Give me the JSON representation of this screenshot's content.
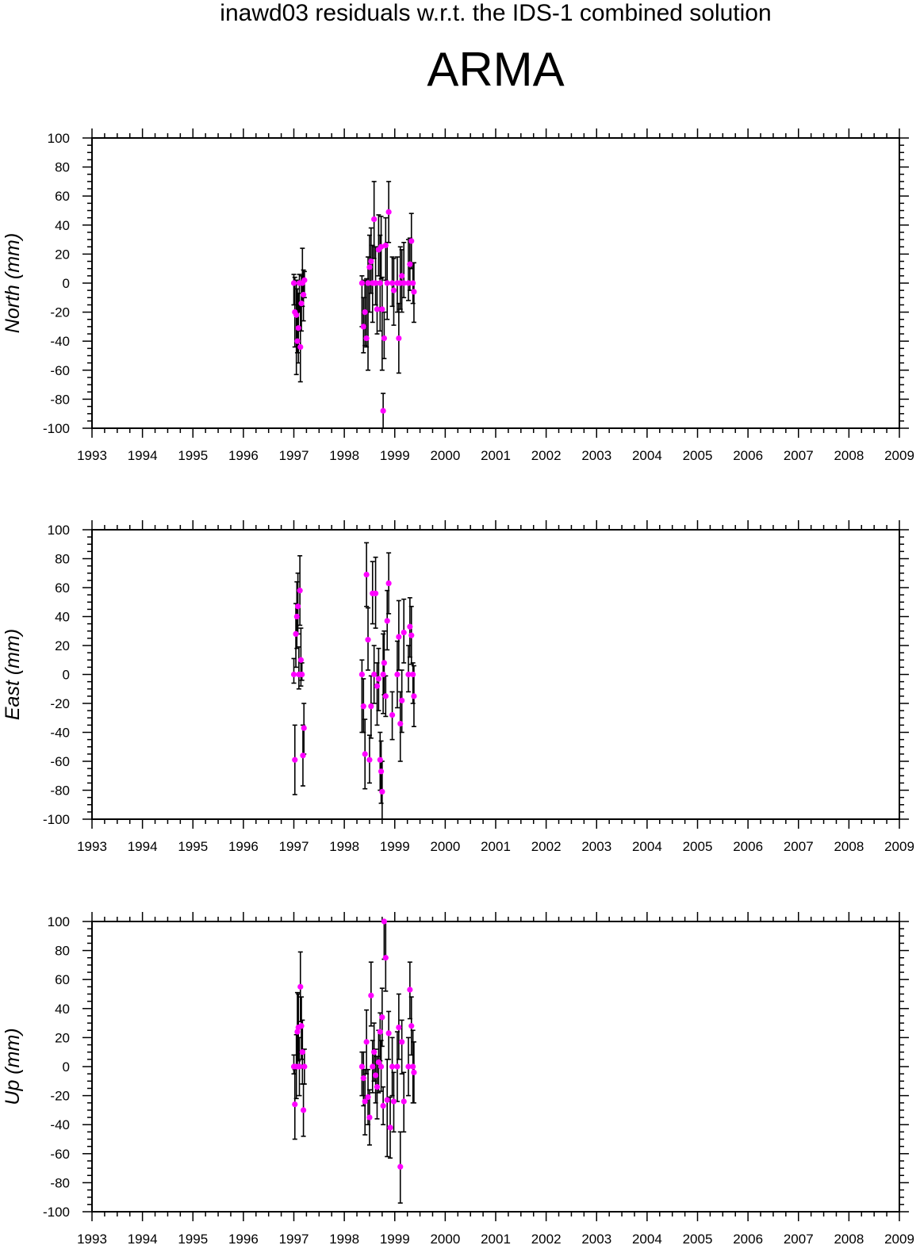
{
  "title": "inawd03 residuals w.r.t. the IDS-1 combined solution",
  "station": "ARMA",
  "colors": {
    "point": "#ff00ff",
    "errorbar": "#000000",
    "axis": "#000000"
  },
  "chart_data": [
    {
      "type": "scatter",
      "ylabel": "North (mm)",
      "xlim": [
        1993,
        2009
      ],
      "ylim": [
        -100,
        100
      ],
      "xticks": [
        "1993",
        "1994",
        "1995",
        "1996",
        "1997",
        "1998",
        "1999",
        "2000",
        "2001",
        "2002",
        "2003",
        "2004",
        "2005",
        "2006",
        "2007",
        "2008",
        "2009"
      ],
      "yticks": [
        "100",
        "80",
        "60",
        "40",
        "20",
        "0",
        "-20",
        "-40",
        "-60",
        "-80",
        "-100"
      ],
      "series": [
        {
          "points": [
            {
              "x": 1997.0,
              "y": 0,
              "lo": -15,
              "hi": 6
            },
            {
              "x": 1997.02,
              "y": -20,
              "lo": -44,
              "hi": 4
            },
            {
              "x": 1997.05,
              "y": -22,
              "lo": -63,
              "hi": 2
            },
            {
              "x": 1997.07,
              "y": -40,
              "lo": -48,
              "hi": -4
            },
            {
              "x": 1997.09,
              "y": -31,
              "lo": -55,
              "hi": -7
            },
            {
              "x": 1997.11,
              "y": 0,
              "lo": -20,
              "hi": 6
            },
            {
              "x": 1997.13,
              "y": -44,
              "lo": -68,
              "hi": -14
            },
            {
              "x": 1997.15,
              "y": -14,
              "lo": -33,
              "hi": 5
            },
            {
              "x": 1997.17,
              "y": 0,
              "lo": -16,
              "hi": 24
            },
            {
              "x": 1997.19,
              "y": -8,
              "lo": -26,
              "hi": 9
            },
            {
              "x": 1997.21,
              "y": 2,
              "lo": -10,
              "hi": 8
            },
            {
              "x": 1998.35,
              "y": 0,
              "lo": -30,
              "hi": 5
            },
            {
              "x": 1998.38,
              "y": -30,
              "lo": -48,
              "hi": -10
            },
            {
              "x": 1998.41,
              "y": -20,
              "lo": -43,
              "hi": 2
            },
            {
              "x": 1998.44,
              "y": -38,
              "lo": -44,
              "hi": 3
            },
            {
              "x": 1998.47,
              "y": 0,
              "lo": -60,
              "hi": 18
            },
            {
              "x": 1998.5,
              "y": 11,
              "lo": -20,
              "hi": 33
            },
            {
              "x": 1998.53,
              "y": 15,
              "lo": -7,
              "hi": 38
            },
            {
              "x": 1998.56,
              "y": 0,
              "lo": -27,
              "hi": 26
            },
            {
              "x": 1998.59,
              "y": 44,
              "lo": 17,
              "hi": 70
            },
            {
              "x": 1998.62,
              "y": 0,
              "lo": -15,
              "hi": 25
            },
            {
              "x": 1998.65,
              "y": -18,
              "lo": -35,
              "hi": 1
            },
            {
              "x": 1998.68,
              "y": 23,
              "lo": 5,
              "hi": 47
            },
            {
              "x": 1998.71,
              "y": 0,
              "lo": -33,
              "hi": 33
            },
            {
              "x": 1998.73,
              "y": 25,
              "lo": 3,
              "hi": 46
            },
            {
              "x": 1998.75,
              "y": -18,
              "lo": -60,
              "hi": 4
            },
            {
              "x": 1998.77,
              "y": -88,
              "lo": -100,
              "hi": -76
            },
            {
              "x": 1998.79,
              "y": -38,
              "lo": -52,
              "hi": -20
            },
            {
              "x": 1998.82,
              "y": 26,
              "lo": 2,
              "hi": 45
            },
            {
              "x": 1998.85,
              "y": 0,
              "lo": -25,
              "hi": 28
            },
            {
              "x": 1998.88,
              "y": 49,
              "lo": 28,
              "hi": 70
            },
            {
              "x": 1998.95,
              "y": 0,
              "lo": -16,
              "hi": 18
            },
            {
              "x": 1998.98,
              "y": -5,
              "lo": -29,
              "hi": 17
            },
            {
              "x": 1999.05,
              "y": 0,
              "lo": -20,
              "hi": 18
            },
            {
              "x": 1999.08,
              "y": -38,
              "lo": -62,
              "hi": -14
            },
            {
              "x": 1999.11,
              "y": 0,
              "lo": -18,
              "hi": 25
            },
            {
              "x": 1999.14,
              "y": 5,
              "lo": -20,
              "hi": 23
            },
            {
              "x": 1999.18,
              "y": 0,
              "lo": -10,
              "hi": 28
            },
            {
              "x": 1999.27,
              "y": 0,
              "lo": -12,
              "hi": 30
            },
            {
              "x": 1999.3,
              "y": 13,
              "lo": -5,
              "hi": 31
            },
            {
              "x": 1999.33,
              "y": 29,
              "lo": 10,
              "hi": 48
            },
            {
              "x": 1999.36,
              "y": 0,
              "lo": -14,
              "hi": 14
            },
            {
              "x": 1999.38,
              "y": -6,
              "lo": -27,
              "hi": 14
            }
          ]
        }
      ]
    },
    {
      "type": "scatter",
      "ylabel": "East (mm)",
      "xlim": [
        1993,
        2009
      ],
      "ylim": [
        -100,
        100
      ],
      "xticks": [
        "1993",
        "1994",
        "1995",
        "1996",
        "1997",
        "1998",
        "1999",
        "2000",
        "2001",
        "2002",
        "2003",
        "2004",
        "2005",
        "2006",
        "2007",
        "2008",
        "2009"
      ],
      "yticks": [
        "100",
        "80",
        "60",
        "40",
        "20",
        "0",
        "-20",
        "-40",
        "-60",
        "-80",
        "-100"
      ],
      "series": [
        {
          "points": [
            {
              "x": 1997.0,
              "y": 0,
              "lo": -6,
              "hi": 11
            },
            {
              "x": 1997.02,
              "y": -59,
              "lo": -83,
              "hi": -35
            },
            {
              "x": 1997.04,
              "y": 28,
              "lo": 5,
              "hi": 49
            },
            {
              "x": 1997.06,
              "y": 40,
              "lo": 18,
              "hi": 64
            },
            {
              "x": 1997.08,
              "y": 47,
              "lo": 28,
              "hi": 70
            },
            {
              "x": 1997.1,
              "y": 0,
              "lo": -10,
              "hi": 19
            },
            {
              "x": 1997.12,
              "y": 58,
              "lo": 34,
              "hi": 82
            },
            {
              "x": 1997.14,
              "y": 10,
              "lo": -8,
              "hi": 32
            },
            {
              "x": 1997.16,
              "y": 0,
              "lo": -4,
              "hi": 8
            },
            {
              "x": 1997.18,
              "y": -56,
              "lo": -77,
              "hi": -35
            },
            {
              "x": 1997.2,
              "y": -37,
              "lo": -55,
              "hi": -20
            },
            {
              "x": 1998.35,
              "y": 0,
              "lo": -40,
              "hi": 10
            },
            {
              "x": 1998.38,
              "y": -22,
              "lo": -40,
              "hi": -3
            },
            {
              "x": 1998.41,
              "y": -55,
              "lo": -79,
              "hi": -31
            },
            {
              "x": 1998.44,
              "y": 69,
              "lo": 47,
              "hi": 91
            },
            {
              "x": 1998.47,
              "y": 24,
              "lo": 3,
              "hi": 46
            },
            {
              "x": 1998.5,
              "y": -59,
              "lo": -75,
              "hi": -42
            },
            {
              "x": 1998.53,
              "y": -22,
              "lo": -44,
              "hi": -1
            },
            {
              "x": 1998.56,
              "y": 56,
              "lo": 35,
              "hi": 78
            },
            {
              "x": 1998.59,
              "y": 0,
              "lo": -20,
              "hi": 20
            },
            {
              "x": 1998.62,
              "y": 56,
              "lo": 32,
              "hi": 81
            },
            {
              "x": 1998.65,
              "y": -8,
              "lo": -35,
              "hi": 8
            },
            {
              "x": 1998.68,
              "y": -3,
              "lo": -25,
              "hi": 18
            },
            {
              "x": 1998.71,
              "y": -59,
              "lo": -80,
              "hi": -40
            },
            {
              "x": 1998.73,
              "y": -67,
              "lo": -89,
              "hi": -46
            },
            {
              "x": 1998.75,
              "y": -81,
              "lo": -100,
              "hi": -60
            },
            {
              "x": 1998.77,
              "y": 0,
              "lo": -27,
              "hi": 28
            },
            {
              "x": 1998.79,
              "y": 8,
              "lo": -14,
              "hi": 30
            },
            {
              "x": 1998.82,
              "y": -15,
              "lo": -29,
              "hi": -1
            },
            {
              "x": 1998.85,
              "y": 37,
              "lo": 17,
              "hi": 58
            },
            {
              "x": 1998.88,
              "y": 63,
              "lo": 42,
              "hi": 84
            },
            {
              "x": 1998.95,
              "y": -28,
              "lo": -45,
              "hi": -12
            },
            {
              "x": 1999.05,
              "y": 0,
              "lo": -23,
              "hi": 23
            },
            {
              "x": 1999.08,
              "y": 26,
              "lo": 3,
              "hi": 51
            },
            {
              "x": 1999.11,
              "y": -34,
              "lo": -60,
              "hi": -12
            },
            {
              "x": 1999.14,
              "y": -18,
              "lo": -40,
              "hi": 3
            },
            {
              "x": 1999.18,
              "y": 29,
              "lo": 8,
              "hi": 52
            },
            {
              "x": 1999.27,
              "y": 0,
              "lo": -12,
              "hi": 20
            },
            {
              "x": 1999.3,
              "y": 33,
              "lo": 12,
              "hi": 53
            },
            {
              "x": 1999.33,
              "y": 27,
              "lo": 7,
              "hi": 47
            },
            {
              "x": 1999.36,
              "y": 0,
              "lo": -20,
              "hi": 8
            },
            {
              "x": 1999.38,
              "y": -15,
              "lo": -36,
              "hi": 6
            }
          ]
        }
      ]
    },
    {
      "type": "scatter",
      "ylabel": "Up (mm)",
      "xlim": [
        1993,
        2009
      ],
      "ylim": [
        -100,
        100
      ],
      "xticks": [
        "1993",
        "1994",
        "1995",
        "1996",
        "1997",
        "1998",
        "1999",
        "2000",
        "2001",
        "2002",
        "2003",
        "2004",
        "2005",
        "2006",
        "2007",
        "2008",
        "2009"
      ],
      "yticks": [
        "100",
        "80",
        "60",
        "40",
        "20",
        "0",
        "-20",
        "-40",
        "-60",
        "-80",
        "-100"
      ],
      "series": [
        {
          "points": [
            {
              "x": 1997.0,
              "y": 0,
              "lo": -5,
              "hi": 8
            },
            {
              "x": 1997.02,
              "y": -26,
              "lo": -50,
              "hi": -2
            },
            {
              "x": 1997.05,
              "y": 0,
              "lo": -22,
              "hi": 22
            },
            {
              "x": 1997.07,
              "y": 24,
              "lo": 0,
              "hi": 51
            },
            {
              "x": 1997.09,
              "y": 27,
              "lo": 4,
              "hi": 50
            },
            {
              "x": 1997.11,
              "y": 0,
              "lo": -20,
              "hi": 20
            },
            {
              "x": 1997.13,
              "y": 55,
              "lo": 31,
              "hi": 79
            },
            {
              "x": 1997.15,
              "y": 28,
              "lo": 5,
              "hi": 48
            },
            {
              "x": 1997.17,
              "y": 10,
              "lo": -12,
              "hi": 32
            },
            {
              "x": 1997.19,
              "y": -30,
              "lo": -48,
              "hi": -12
            },
            {
              "x": 1997.21,
              "y": 0,
              "lo": -12,
              "hi": 12
            },
            {
              "x": 1998.35,
              "y": 0,
              "lo": -20,
              "hi": 10
            },
            {
              "x": 1998.38,
              "y": -8,
              "lo": -27,
              "hi": 10
            },
            {
              "x": 1998.41,
              "y": -24,
              "lo": -47,
              "hi": -2
            },
            {
              "x": 1998.44,
              "y": 17,
              "lo": -5,
              "hi": 39
            },
            {
              "x": 1998.47,
              "y": -21,
              "lo": -40,
              "hi": -2
            },
            {
              "x": 1998.5,
              "y": -35,
              "lo": -54,
              "hi": -16
            },
            {
              "x": 1998.53,
              "y": 49,
              "lo": 28,
              "hi": 72
            },
            {
              "x": 1998.56,
              "y": 0,
              "lo": -18,
              "hi": 18
            },
            {
              "x": 1998.59,
              "y": 10,
              "lo": -10,
              "hi": 30
            },
            {
              "x": 1998.62,
              "y": -6,
              "lo": -25,
              "hi": 12
            },
            {
              "x": 1998.65,
              "y": -14,
              "lo": -36,
              "hi": 7
            },
            {
              "x": 1998.68,
              "y": 3,
              "lo": -18,
              "hi": 25
            },
            {
              "x": 1998.71,
              "y": 24,
              "lo": 4,
              "hi": 37
            },
            {
              "x": 1998.73,
              "y": 0,
              "lo": -17,
              "hi": 18
            },
            {
              "x": 1998.75,
              "y": 34,
              "lo": 14,
              "hi": 54
            },
            {
              "x": 1998.77,
              "y": -27,
              "lo": -40,
              "hi": -14
            },
            {
              "x": 1998.79,
              "y": 100,
              "lo": 74,
              "hi": 100
            },
            {
              "x": 1998.82,
              "y": 75,
              "lo": 52,
              "hi": 100
            },
            {
              "x": 1998.85,
              "y": -23,
              "lo": -62,
              "hi": 5
            },
            {
              "x": 1998.88,
              "y": 23,
              "lo": 5,
              "hi": 38
            },
            {
              "x": 1998.91,
              "y": -42,
              "lo": -63,
              "hi": -21
            },
            {
              "x": 1998.95,
              "y": 0,
              "lo": -20,
              "hi": 20
            },
            {
              "x": 1998.98,
              "y": -24,
              "lo": -45,
              "hi": -4
            },
            {
              "x": 1999.05,
              "y": 0,
              "lo": -24,
              "hi": 24
            },
            {
              "x": 1999.08,
              "y": 27,
              "lo": 5,
              "hi": 50
            },
            {
              "x": 1999.11,
              "y": -69,
              "lo": -94,
              "hi": -45
            },
            {
              "x": 1999.14,
              "y": 17,
              "lo": -5,
              "hi": 32
            },
            {
              "x": 1999.18,
              "y": -24,
              "lo": -45,
              "hi": -4
            },
            {
              "x": 1999.27,
              "y": 0,
              "lo": -20,
              "hi": 20
            },
            {
              "x": 1999.3,
              "y": 53,
              "lo": 33,
              "hi": 72
            },
            {
              "x": 1999.33,
              "y": 28,
              "lo": 8,
              "hi": 48
            },
            {
              "x": 1999.36,
              "y": 0,
              "lo": -25,
              "hi": 25
            },
            {
              "x": 1999.38,
              "y": -4,
              "lo": -25,
              "hi": 17
            }
          ]
        }
      ]
    }
  ]
}
